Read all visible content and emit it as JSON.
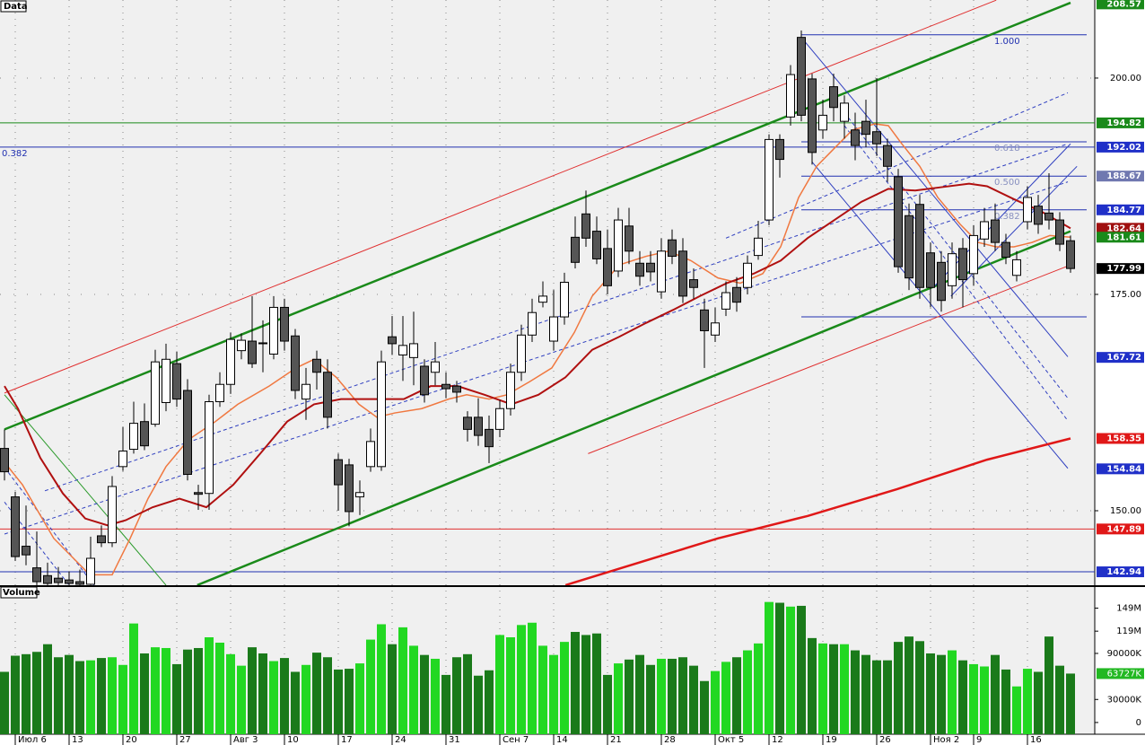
{
  "chart_data": [
    {
      "type": "candlestick",
      "title": "Data",
      "xlim": [
        -0.4167,
        101.25
      ],
      "ylim": [
        141.39,
        209.02
      ],
      "xticks": [
        {
          "value": 1,
          "label": "Июл 6"
        },
        {
          "value": 6,
          "label": "13"
        },
        {
          "value": 11,
          "label": "20"
        },
        {
          "value": 16,
          "label": "27"
        },
        {
          "value": 21,
          "label": "Авг 3"
        },
        {
          "value": 26,
          "label": "10"
        },
        {
          "value": 31,
          "label": "17"
        },
        {
          "value": 36,
          "label": "24"
        },
        {
          "value": 41,
          "label": "31"
        },
        {
          "value": 46,
          "label": "Сен 7"
        },
        {
          "value": 51,
          "label": "14"
        },
        {
          "value": 56,
          "label": "21"
        },
        {
          "value": 61,
          "label": "28"
        },
        {
          "value": 66,
          "label": "Окт 5"
        },
        {
          "value": 71,
          "label": "12"
        },
        {
          "value": 76,
          "label": "19"
        },
        {
          "value": 81,
          "label": "26"
        },
        {
          "value": 86,
          "label": "Ноя 2"
        },
        {
          "value": 90,
          "label": "9"
        },
        {
          "value": 95,
          "label": "16"
        }
      ],
      "yticks": [
        {
          "value": 200,
          "label": "200.00"
        },
        {
          "value": 175,
          "label": "175.00"
        },
        {
          "value": 150,
          "label": "150.00"
        }
      ],
      "up_color": "#ffffff",
      "down_color": "#555555",
      "open": [
        157.2,
        151.6,
        145.9,
        143.4,
        142.5,
        142.2,
        142,
        141.8,
        141.5,
        147.1,
        146.3,
        155.1,
        157.1,
        160.3,
        160,
        162.5,
        167,
        163.9,
        152.1,
        152,
        162.6,
        164.6,
        168.5,
        169.6,
        169.4,
        168.1,
        173.5,
        170.2,
        162.9,
        167.5,
        166,
        155.9,
        155.3,
        151.6,
        155.1,
        155.1,
        170.1,
        168,
        167.7,
        166.7,
        166,
        164.6,
        164.4,
        160.8,
        160.8,
        159.4,
        159.4,
        161.8,
        166,
        170.3,
        174.1,
        169.6,
        172.4,
        181.6,
        184.3,
        182.3,
        180.3,
        177.7,
        182.9,
        178.6,
        178.6,
        175.3,
        181.3,
        180,
        176.7,
        173.2,
        170.3,
        173.3,
        175.8,
        175.8,
        179.5,
        183.6,
        192.9,
        195.5,
        204.7,
        199.9,
        194,
        199,
        195,
        194,
        195,
        193.8,
        192.2,
        188.6,
        184.1,
        185.4,
        179.8,
        178.7,
        176,
        180.3,
        177.4,
        181.4,
        183.6,
        181,
        177.2,
        183.4,
        185.2,
        184.4,
        183.6,
        181.2
      ],
      "high": [
        159.4,
        152.2,
        150.6,
        147.6,
        144,
        143.5,
        143,
        143.2,
        147,
        148.3,
        154,
        159.7,
        162.6,
        162.4,
        168.6,
        169.3,
        168.4,
        165.2,
        153,
        163.4,
        166,
        170.6,
        170.5,
        174.8,
        172,
        174.8,
        174.5,
        171,
        166.5,
        168.5,
        167.5,
        156.6,
        156,
        153.5,
        159.5,
        168.5,
        172.5,
        172.5,
        173,
        167.5,
        169.5,
        166,
        165,
        161.5,
        163,
        161,
        162.8,
        167,
        171.5,
        174.5,
        176.5,
        175.5,
        177.5,
        184,
        187,
        184,
        182.5,
        185,
        185,
        180,
        180,
        181.5,
        182.5,
        181.5,
        178,
        174.5,
        173.5,
        176.5,
        177,
        179.5,
        183.5,
        193.5,
        193.5,
        201.5,
        205.5,
        200.5,
        197.5,
        200.5,
        198,
        196,
        197.5,
        200,
        193,
        189.5,
        185.5,
        186.5,
        181,
        180,
        181,
        181.5,
        183,
        185,
        185.5,
        182,
        180,
        187.5,
        186.5,
        189,
        184.5,
        181.8
      ],
      "low": [
        153.5,
        144.2,
        143.7,
        141.4,
        141.4,
        141.4,
        141.4,
        141.4,
        141.4,
        145.8,
        145.8,
        154.6,
        156.6,
        157,
        159.7,
        161.5,
        162,
        153.5,
        150.1,
        150.1,
        162,
        163.5,
        167.5,
        166.5,
        166,
        167.5,
        168.5,
        162.9,
        160.5,
        164,
        159.5,
        150,
        148.2,
        149.5,
        154.5,
        154.6,
        168,
        165,
        164.5,
        162.5,
        164.5,
        163,
        162.5,
        158,
        157.5,
        155.5,
        158.5,
        161,
        165,
        169.5,
        173.5,
        168.5,
        171.5,
        178,
        180.5,
        178.5,
        175,
        177,
        178.5,
        176,
        176.5,
        174.5,
        178.5,
        174,
        174.5,
        166.5,
        169.5,
        172.5,
        173,
        175,
        179,
        183,
        188.5,
        194.5,
        195,
        190,
        193,
        195,
        193,
        190.5,
        192,
        191,
        188,
        177.5,
        175.5,
        174.5,
        173.5,
        173,
        174.5,
        173.5,
        176,
        180.5,
        180,
        178.5,
        176.5,
        182.5,
        182,
        182.5,
        180,
        177.5
      ],
      "close": [
        154.5,
        144.7,
        144.9,
        141.8,
        141.6,
        141.7,
        141.6,
        141.5,
        144.5,
        146.3,
        152.8,
        156.9,
        160.1,
        157.5,
        167.2,
        167.5,
        162.9,
        154.2,
        151.9,
        162.6,
        164.6,
        169.8,
        169.7,
        167,
        169.3,
        173.5,
        169.6,
        163.9,
        164.6,
        166,
        160.8,
        153,
        149.9,
        152.1,
        158,
        167.2,
        169.3,
        169.1,
        169.3,
        163.4,
        167.2,
        164.1,
        163.7,
        159.4,
        158.7,
        157.4,
        161.8,
        166,
        170.3,
        172.9,
        174.8,
        172.4,
        176.4,
        178.7,
        181.5,
        179.1,
        176,
        183.6,
        180,
        177.1,
        177.6,
        180,
        179.4,
        174.8,
        175.8,
        170.8,
        171.7,
        175.2,
        174.1,
        178.6,
        181.5,
        192.9,
        190.6,
        200.4,
        195.7,
        191.4,
        195.7,
        196.6,
        197.1,
        192.2,
        193.5,
        192.4,
        189.8,
        178.2,
        176.9,
        175.8,
        175.8,
        174.3,
        179.7,
        176.7,
        181.8,
        183.4,
        181,
        179.3,
        179,
        186.2,
        183.1,
        183.6,
        180.8,
        177.99
      ],
      "lines": [
        {
          "color": "#f07840",
          "width": 1.5,
          "x": [
            0,
            1.67,
            4.58,
            7.92,
            10,
            11.67,
            13.33,
            15,
            17.08,
            19.58,
            21.67,
            24.58,
            27.08,
            28.75,
            30.83,
            32.92,
            34.58,
            36.25,
            38.75,
            41.25,
            42.92,
            45,
            46.67,
            48.75,
            50.83,
            52.92,
            54.58,
            57.08,
            59.58,
            61.67,
            63.75,
            66.25,
            68.33,
            70.42,
            72.08,
            73.75,
            75.42,
            77.08,
            78.75,
            80.83,
            82.08,
            83.33,
            85,
            86.67,
            88.75,
            90.42,
            92.08,
            93.75,
            95.42,
            97.08,
            99
          ],
          "values": [
            155.6,
            153,
            146.8,
            142.6,
            142.6,
            146.8,
            151.4,
            155.1,
            158.2,
            160.3,
            162.3,
            164.4,
            166.5,
            167.5,
            165.4,
            162.3,
            160.8,
            161.3,
            161.8,
            162.9,
            163.4,
            162.9,
            163.4,
            164.9,
            166.5,
            170.6,
            174.8,
            178.4,
            179.4,
            180,
            178.9,
            176.9,
            176.3,
            177.4,
            180.5,
            186.2,
            189.8,
            191.9,
            194,
            194.7,
            194.5,
            192.4,
            189.8,
            186.2,
            183.1,
            181,
            180.5,
            180.5,
            181,
            181.8,
            181.61
          ]
        },
        {
          "color": "#b01010",
          "width": 2,
          "x": [
            0,
            1.25,
            3.33,
            5.42,
            7.5,
            9.58,
            11.25,
            13.75,
            16.25,
            18.75,
            21.25,
            23.75,
            26.25,
            28.75,
            31.25,
            34.58,
            37.08,
            39.58,
            42.08,
            44.58,
            47.08,
            49.58,
            52.08,
            54.58,
            57.08,
            59.58,
            62.08,
            64.58,
            67.08,
            69.58,
            72.08,
            74.58,
            77.08,
            79.58,
            82.08,
            84.58,
            87.08,
            89.58,
            91.25,
            93.75,
            96.25,
            99
          ],
          "values": [
            164.4,
            161.8,
            156.1,
            152,
            149.1,
            148.3,
            148.9,
            150.4,
            151.4,
            150.4,
            153,
            156.6,
            160.3,
            162.3,
            162.9,
            162.9,
            162.9,
            164.4,
            164.4,
            163.4,
            162.3,
            163.4,
            165.4,
            168.6,
            170.1,
            171.7,
            173.2,
            174.8,
            176.3,
            177.4,
            178.9,
            181.5,
            183.6,
            185.7,
            187.2,
            187,
            187.4,
            187.8,
            187.5,
            186,
            184.6,
            182.64
          ]
        },
        {
          "color": "#e01818",
          "width": 2.5,
          "x": [
            52.1,
            66.25,
            74.6,
            82.9,
            91.25,
            99
          ],
          "values": [
            141.4,
            146.8,
            149.4,
            152.5,
            155.9,
            158.35
          ]
        }
      ],
      "trendlines": [
        {
          "color": "#1a8a1a",
          "width": 2.5,
          "dashed": false,
          "x": [
            0,
            99
          ],
          "values": [
            159.4,
            208.7
          ]
        },
        {
          "color": "#1a8a1a",
          "width": 2.5,
          "dashed": false,
          "x": [
            17.9,
            99
          ],
          "values": [
            141.4,
            182.3
          ]
        },
        {
          "color": "#e03030",
          "width": 1,
          "dashed": false,
          "x": [
            0,
            92.1
          ],
          "values": [
            163.6,
            209.0
          ]
        },
        {
          "color": "#e03030",
          "width": 1,
          "dashed": false,
          "x": [
            54.2,
            99
          ],
          "values": [
            156.6,
            178.4
          ]
        },
        {
          "color": "#2a9a2a",
          "width": 1,
          "dashed": false,
          "x": [
            0,
            15
          ],
          "values": [
            163.4,
            141.4
          ]
        },
        {
          "color": "#3040c0",
          "width": 1,
          "dashed": true,
          "x": [
            3.75,
            98.75
          ],
          "values": [
            152.3,
            192.4
          ]
        },
        {
          "color": "#3040c0",
          "width": 1,
          "dashed": true,
          "x": [
            0,
            98.75
          ],
          "values": [
            147.3,
            188.0
          ]
        },
        {
          "color": "#3040c0",
          "width": 1,
          "dashed": true,
          "x": [
            67,
            98.75
          ],
          "values": [
            181.5,
            198.3
          ]
        },
        {
          "color": "#3040c0",
          "width": 1,
          "dashed": false,
          "x": [
            74,
            98.75
          ],
          "values": [
            204.7,
            167.8
          ]
        },
        {
          "color": "#3040c0",
          "width": 1,
          "dashed": false,
          "x": [
            75,
            98.75
          ],
          "values": [
            190.3,
            154.9
          ]
        },
        {
          "color": "#3040c0",
          "width": 1,
          "dashed": true,
          "x": [
            78,
            98.75
          ],
          "values": [
            196,
            163
          ]
        },
        {
          "color": "#3040c0",
          "width": 1,
          "dashed": true,
          "x": [
            78,
            98.75
          ],
          "values": [
            194.5,
            160.4
          ]
        },
        {
          "color": "#3040c0",
          "width": 1,
          "dashed": false,
          "x": [
            86.25,
            99
          ],
          "values": [
            175.8,
            192.4
          ]
        },
        {
          "color": "#3040c0",
          "width": 1,
          "dashed": false,
          "x": [
            87.9,
            99.6
          ],
          "values": [
            174.8,
            189.8
          ]
        },
        {
          "color": "#3040c0",
          "width": 1,
          "dashed": true,
          "x": [
            0,
            8.3
          ],
          "values": [
            155,
            141.4
          ]
        },
        {
          "color": "#3040c0",
          "width": 1,
          "dashed": true,
          "x": [
            0,
            6
          ],
          "values": [
            151,
            141.4
          ]
        }
      ],
      "levels": [
        {
          "value": 194.82,
          "color": "#1a8a1a"
        },
        {
          "value": 192.02,
          "color": "#2030b0",
          "label": "0.382"
        },
        {
          "value": 147.89,
          "color": "#e03030"
        },
        {
          "value": 142.94,
          "color": "#2030b0"
        }
      ],
      "fib": {
        "x": [
          74,
          100.5
        ],
        "color": "#2030b0",
        "levels": [
          {
            "value": 205.0,
            "label": "1.000"
          },
          {
            "value": 192.63,
            "label": "0.618"
          },
          {
            "value": 188.67,
            "label": "0.500"
          },
          {
            "value": 184.77,
            "label": "0.382"
          },
          {
            "value": 172.4
          }
        ]
      },
      "price_markers": [
        {
          "value": 208.57,
          "label": "208.57",
          "color": "#1a8a1a"
        },
        {
          "value": 194.82,
          "label": "194.82",
          "color": "#1a8a1a"
        },
        {
          "value": 192.02,
          "label": "192.02",
          "color": "#2030c8"
        },
        {
          "value": 188.67,
          "label": "188.67",
          "color": "#7078b0"
        },
        {
          "value": 184.77,
          "label": "184.77",
          "color": "#2030c8"
        },
        {
          "value": 182.64,
          "label": "182.64",
          "color": "#a01010"
        },
        {
          "value": 181.61,
          "label": "181.61",
          "color": "#1a8a1a"
        },
        {
          "value": 177.99,
          "label": "177.99",
          "color": "#000000"
        },
        {
          "value": 167.72,
          "label": "167.72",
          "color": "#2030c8"
        },
        {
          "value": 158.35,
          "label": "158.35",
          "color": "#e01818"
        },
        {
          "value": 154.84,
          "label": "154.84",
          "color": "#2030c8"
        },
        {
          "value": 147.89,
          "label": "147.89",
          "color": "#e01818"
        },
        {
          "value": 142.94,
          "label": "142.94",
          "color": "#2030c8"
        }
      ]
    },
    {
      "type": "bar",
      "title": "Volume",
      "ylim": [
        -15.3,
        176.5
      ],
      "yticks": [
        {
          "value": 149,
          "label": "149M"
        },
        {
          "value": 119,
          "label": "119M"
        },
        {
          "value": 90,
          "label": "90000K"
        },
        {
          "value": 30,
          "label": "30000K"
        },
        0
      ],
      "up_color": "#22d822",
      "down_color": "#1a7a1a",
      "values": [
        66,
        87,
        89,
        92,
        102,
        85,
        88,
        80,
        81,
        84,
        85,
        75,
        129,
        90,
        98,
        97,
        76,
        95,
        97,
        111,
        104,
        89,
        74,
        98,
        90,
        80,
        84,
        66,
        75,
        91,
        85,
        69,
        70,
        77,
        108,
        128,
        102,
        124,
        100,
        88,
        83,
        62,
        85,
        89,
        61,
        68,
        114,
        111,
        127,
        130,
        100,
        88,
        105,
        118,
        114,
        116,
        62,
        77,
        82,
        88,
        75,
        83,
        83,
        85,
        74,
        54,
        67,
        79,
        85,
        94,
        103,
        157,
        156,
        151,
        152,
        110,
        103,
        102,
        102,
        94,
        88,
        81,
        81,
        105,
        112,
        106,
        90,
        88,
        94,
        81,
        76,
        73,
        88,
        69,
        47,
        70,
        66,
        112,
        74,
        63.727
      ],
      "current": {
        "value": 63.727,
        "label": "63727K",
        "color": "#22b822"
      }
    }
  ]
}
